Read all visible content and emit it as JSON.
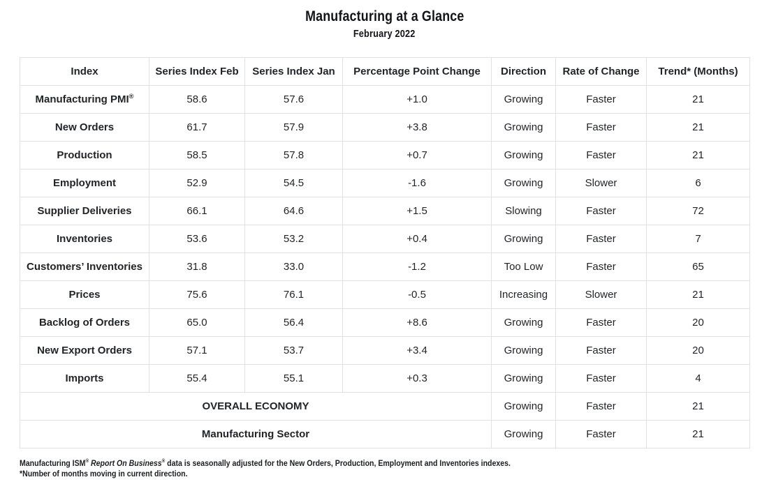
{
  "page": {
    "title": "Manufacturing at a Glance",
    "subtitle": "February 2022"
  },
  "table": {
    "headers": [
      "Index",
      "Series Index Feb",
      "Series Index Jan",
      "Percentage Point Change",
      "Direction",
      "Rate of Change",
      "Trend* (Months)"
    ],
    "rows": [
      {
        "label": "Manufacturing PMI",
        "mark": "®",
        "feb": "58.6",
        "jan": "57.6",
        "change": "+1.0",
        "direction": "Growing",
        "rate": "Faster",
        "trend": "21"
      },
      {
        "label": "New Orders",
        "feb": "61.7",
        "jan": "57.9",
        "change": "+3.8",
        "direction": "Growing",
        "rate": "Faster",
        "trend": "21"
      },
      {
        "label": "Production",
        "feb": "58.5",
        "jan": "57.8",
        "change": "+0.7",
        "direction": "Growing",
        "rate": "Faster",
        "trend": "21"
      },
      {
        "label": "Employment",
        "feb": "52.9",
        "jan": "54.5",
        "change": "-1.6",
        "direction": "Growing",
        "rate": "Slower",
        "trend": "6"
      },
      {
        "label": "Supplier Deliveries",
        "feb": "66.1",
        "jan": "64.6",
        "change": "+1.5",
        "direction": "Slowing",
        "rate": "Faster",
        "trend": "72"
      },
      {
        "label": "Inventories",
        "feb": "53.6",
        "jan": "53.2",
        "change": "+0.4",
        "direction": "Growing",
        "rate": "Faster",
        "trend": "7"
      },
      {
        "label": "Customers’ Inventories",
        "feb": "31.8",
        "jan": "33.0",
        "change": "-1.2",
        "direction": "Too Low",
        "rate": "Faster",
        "trend": "65"
      },
      {
        "label": "Prices",
        "feb": "75.6",
        "jan": "76.1",
        "change": "-0.5",
        "direction": "Increasing",
        "rate": "Slower",
        "trend": "21"
      },
      {
        "label": "Backlog of Orders",
        "feb": "65.0",
        "jan": "56.4",
        "change": "+8.6",
        "direction": "Growing",
        "rate": "Faster",
        "trend": "20"
      },
      {
        "label": "New Export Orders",
        "feb": "57.1",
        "jan": "53.7",
        "change": "+3.4",
        "direction": "Growing",
        "rate": "Faster",
        "trend": "20"
      },
      {
        "label": "Imports",
        "feb": "55.4",
        "jan": "55.1",
        "change": "+0.3",
        "direction": "Growing",
        "rate": "Faster",
        "trend": "4"
      }
    ],
    "summary_rows": [
      {
        "label": "OVERALL ECONOMY",
        "direction": "Growing",
        "rate": "Faster",
        "trend": "21"
      },
      {
        "label": "Manufacturing Sector",
        "direction": "Growing",
        "rate": "Faster",
        "trend": "21"
      }
    ]
  },
  "footnote": {
    "lead": "Manufacturing ISM",
    "mark1": "®",
    "italic": " Report On Business",
    "mark2": "®",
    "rest": " data is seasonally adjusted for the New Orders, Production, Employment and Inventories indexes.",
    "line2": "*Number of months moving in current direction."
  }
}
